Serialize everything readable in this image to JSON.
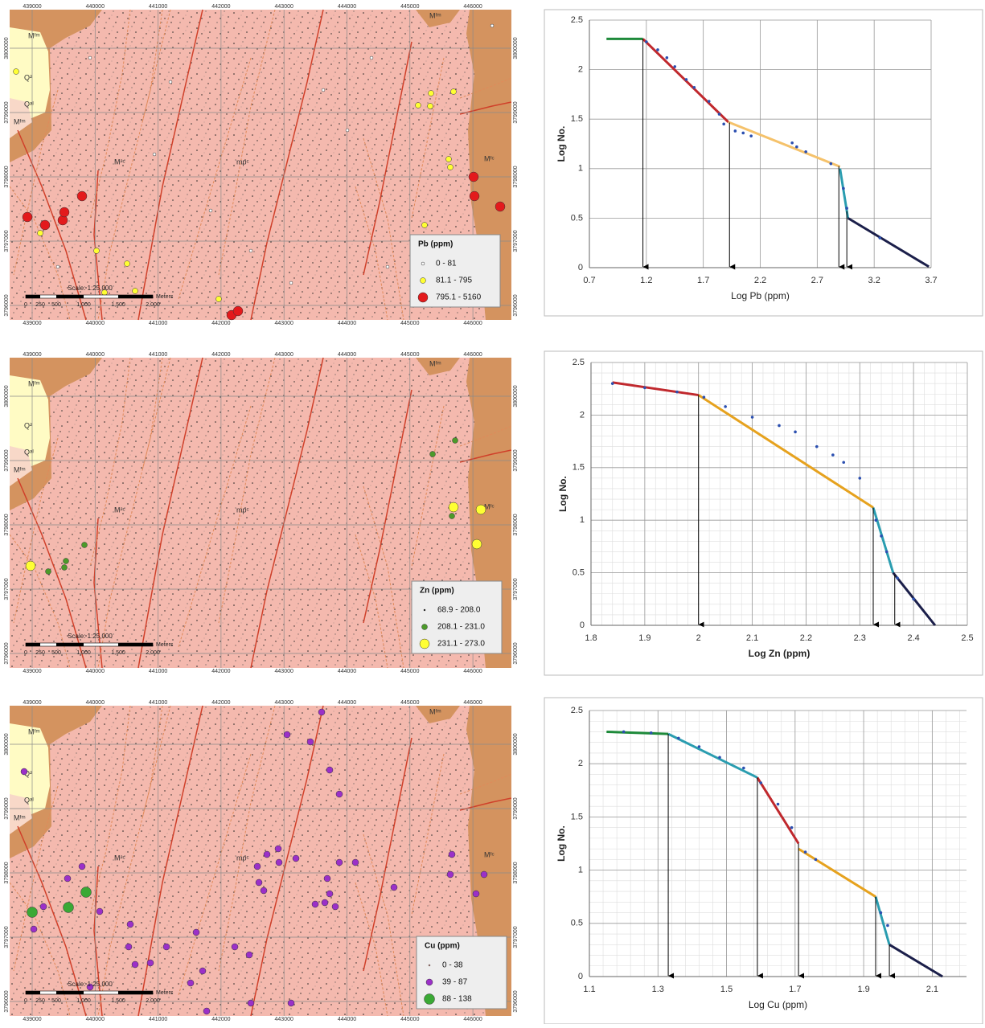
{
  "maps": {
    "easting": [
      "439000",
      "440000",
      "441000",
      "442000",
      "443000",
      "444000",
      "445000",
      "446000"
    ],
    "northing": [
      "3800000",
      "3799000",
      "3798000",
      "3797000",
      "3796000"
    ],
    "geology_labels": [
      "Mᶠᵐ",
      "Q²",
      "Qᵃˡ",
      "Mᶠᵐ",
      "M²ᶜ",
      "mpᶜ",
      "Mᶠᵐ",
      "Mᶠᶜ"
    ],
    "scale": {
      "title": "Scale: 1:25,000",
      "labels": [
        "0",
        "250",
        "500",
        "1,000",
        "1,500",
        "2,000"
      ],
      "unit": "Meters"
    },
    "legends": [
      {
        "title": "Pb (ppm)",
        "items": [
          {
            "label": "0 - 81",
            "color": "#ffffff"
          },
          {
            "label": "81.1 - 795",
            "color": "#ffff33"
          },
          {
            "label": "795.1 - 5160",
            "color": "#e31a1c"
          }
        ]
      },
      {
        "title": "Zn (ppm)",
        "items": [
          {
            "label": "68.9 - 208.0",
            "color": "#000000"
          },
          {
            "label": "208.1 - 231.0",
            "color": "#4c9a2a"
          },
          {
            "label": "231.1 - 273.0",
            "color": "#ffff33"
          }
        ]
      },
      {
        "title": "Cu (ppm)",
        "items": [
          {
            "label": "0 - 38",
            "color": "#e89a90"
          },
          {
            "label": "39 - 87",
            "color": "#9b30c8"
          },
          {
            "label": "88 - 138",
            "color": "#3aa935"
          }
        ]
      }
    ]
  },
  "chart_data": [
    {
      "type": "line",
      "x_label": "Log Pb (ppm)",
      "y_label": "Log No.",
      "xlim": [
        0.7,
        3.7
      ],
      "xticks": [
        0.7,
        1.2,
        1.7,
        2.2,
        2.7,
        3.2,
        3.7
      ],
      "ylim": [
        0,
        2.5
      ],
      "yticks": [
        0,
        0.5,
        1,
        1.5,
        2,
        2.5
      ],
      "grid": true,
      "minor_grid": false,
      "series": [
        {
          "color": "#1e8a3a",
          "x": [
            0.85,
            1.17
          ],
          "values": [
            2.31,
            2.31
          ]
        },
        {
          "color": "#c0282d",
          "x": [
            1.17,
            1.92
          ],
          "values": [
            2.31,
            1.47
          ]
        },
        {
          "color": "#f5c26b",
          "x": [
            1.92,
            2.9
          ],
          "values": [
            1.47,
            1.02
          ]
        },
        {
          "color": "#2a9db0",
          "x": [
            2.9,
            2.97
          ],
          "values": [
            1.0,
            0.5
          ]
        },
        {
          "color": "#1b1f4a",
          "x": [
            2.97,
            3.68
          ],
          "values": [
            0.5,
            0.01
          ]
        }
      ],
      "points": {
        "color": "#2b4fb0",
        "x": [
          1.2,
          1.3,
          1.38,
          1.45,
          1.55,
          1.62,
          1.75,
          1.84,
          1.88,
          1.98,
          2.05,
          2.12,
          2.48,
          2.52,
          2.6,
          2.82,
          2.93,
          2.96,
          3.25
        ],
        "values": [
          2.28,
          2.2,
          2.12,
          2.03,
          1.9,
          1.82,
          1.68,
          1.55,
          1.45,
          1.38,
          1.36,
          1.33,
          1.26,
          1.22,
          1.17,
          1.05,
          0.8,
          0.6,
          0.3
        ]
      },
      "thresholds": [
        1.17,
        1.93,
        2.89,
        2.96
      ]
    },
    {
      "type": "line",
      "x_label": "Log Zn (ppm)",
      "y_label": "Log No.",
      "xlim": [
        1.8,
        2.5
      ],
      "xticks": [
        1.8,
        1.9,
        2,
        2.1,
        2.2,
        2.3,
        2.4,
        2.5
      ],
      "ylim": [
        0,
        2.5
      ],
      "yticks": [
        0,
        0.5,
        1,
        1.5,
        2,
        2.5
      ],
      "grid": true,
      "minor_grid": true,
      "series": [
        {
          "color": "#c0282d",
          "x": [
            1.84,
            2.0
          ],
          "values": [
            2.31,
            2.19
          ]
        },
        {
          "color": "#e6a21e",
          "x": [
            2.0,
            2.325
          ],
          "values": [
            2.19,
            1.12
          ]
        },
        {
          "color": "#2a9db0",
          "x": [
            2.325,
            2.362
          ],
          "values": [
            1.12,
            0.5
          ]
        },
        {
          "color": "#1b1f4a",
          "x": [
            2.362,
            2.44
          ],
          "values": [
            0.5,
            0
          ]
        }
      ],
      "points": {
        "color": "#2b4fb0",
        "x": [
          1.84,
          1.9,
          1.96,
          2.01,
          2.05,
          2.1,
          2.15,
          2.18,
          2.22,
          2.25,
          2.27,
          2.3,
          2.33,
          2.34,
          2.35,
          2.37,
          2.4
        ],
        "values": [
          2.3,
          2.26,
          2.22,
          2.17,
          2.08,
          1.98,
          1.9,
          1.84,
          1.7,
          1.62,
          1.55,
          1.4,
          1.0,
          0.85,
          0.7,
          0.45,
          0.25
        ]
      },
      "thresholds": [
        2.0,
        2.325,
        2.365
      ]
    },
    {
      "type": "line",
      "x_label": "Log Cu (ppm)",
      "y_label": "Log No.",
      "xlim": [
        1.1,
        2.2
      ],
      "xticks": [
        1.1,
        1.3,
        1.5,
        1.7,
        1.9,
        2.1
      ],
      "ylim": [
        0,
        2.5
      ],
      "yticks": [
        0,
        0.5,
        1,
        1.5,
        2,
        2.5
      ],
      "grid": true,
      "minor_grid": true,
      "series": [
        {
          "color": "#1e8a3a",
          "x": [
            1.15,
            1.33
          ],
          "values": [
            2.3,
            2.28
          ]
        },
        {
          "color": "#2a9db0",
          "x": [
            1.33,
            1.59
          ],
          "values": [
            2.28,
            1.87
          ]
        },
        {
          "color": "#c0282d",
          "x": [
            1.59,
            1.71
          ],
          "values": [
            1.87,
            1.25
          ]
        },
        {
          "color": "#e6a21e",
          "x": [
            1.71,
            1.935
          ],
          "values": [
            1.2,
            0.75
          ]
        },
        {
          "color": "#2a9db0",
          "x": [
            1.935,
            1.975
          ],
          "values": [
            0.75,
            0.3
          ]
        },
        {
          "color": "#1b1f4a",
          "x": [
            1.975,
            2.13
          ],
          "values": [
            0.3,
            0
          ]
        }
      ],
      "points": {
        "color": "#2b4fb0",
        "x": [
          1.2,
          1.28,
          1.36,
          1.42,
          1.48,
          1.55,
          1.6,
          1.65,
          1.69,
          1.73,
          1.76,
          1.95,
          1.97
        ],
        "values": [
          2.3,
          2.29,
          2.24,
          2.16,
          2.06,
          1.96,
          1.82,
          1.62,
          1.4,
          1.17,
          1.1,
          0.6,
          0.48
        ]
      },
      "thresholds": [
        1.33,
        1.59,
        1.71,
        1.935,
        1.975
      ]
    }
  ]
}
